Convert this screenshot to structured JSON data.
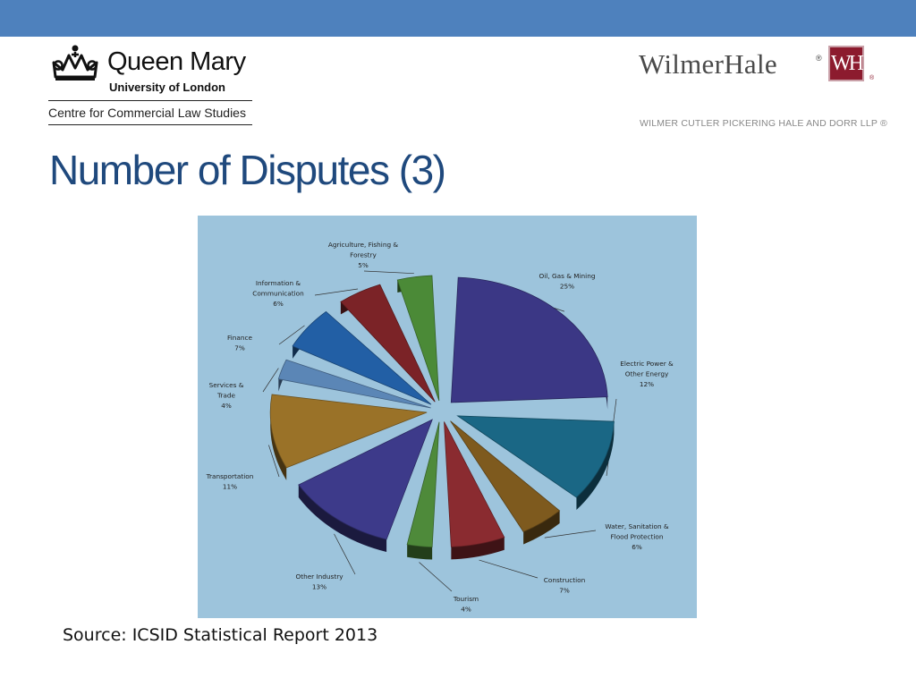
{
  "header": {
    "qm_logo": {
      "name": "Queen Mary",
      "subtitle": "University of London",
      "centre": "Centre for Commercial Law Studies"
    },
    "wh_logo": {
      "wordmark": "WilmerHale",
      "reg_mark": "®",
      "monogram": "WH",
      "firm_name": "WILMER CUTLER PICKERING HALE AND DORR LLP ®"
    }
  },
  "slide": {
    "title": "Number of Disputes (3)",
    "source": "Source: ICSID Statistical Report 2013"
  },
  "colors": {
    "top_bar": "#4e81bd",
    "title": "#1f497d",
    "chart_background": "#9dc4dc"
  },
  "chart_data": {
    "type": "pie",
    "title": "",
    "unit": "%",
    "slices": [
      {
        "label_lines": [
          "Oil, Gas & Mining"
        ],
        "value": 25,
        "value_label": "25%",
        "color": "#3b3785"
      },
      {
        "label_lines": [
          "Electric Power &",
          "Other Energy"
        ],
        "value": 12,
        "value_label": "12%",
        "color": "#1a6785"
      },
      {
        "label_lines": [
          "Water, Sanitation &",
          "Flood Protection"
        ],
        "value": 6,
        "value_label": "6%",
        "color": "#7e5a1e"
      },
      {
        "label_lines": [
          "Construction"
        ],
        "value": 7,
        "value_label": "7%",
        "color": "#8a2b30"
      },
      {
        "label_lines": [
          "Tourism"
        ],
        "value": 4,
        "value_label": "4%",
        "color": "#4e8a3a"
      },
      {
        "label_lines": [
          "Other Industry"
        ],
        "value": 13,
        "value_label": "13%",
        "color": "#3d3a8a"
      },
      {
        "label_lines": [
          "Transportation"
        ],
        "value": 11,
        "value_label": "11%",
        "color": "#9a7228"
      },
      {
        "label_lines": [
          "Services &",
          "Trade"
        ],
        "value": 4,
        "value_label": "4%",
        "color": "#5b86b6"
      },
      {
        "label_lines": [
          "Finance"
        ],
        "value": 7,
        "value_label": "7%",
        "color": "#225fa5"
      },
      {
        "label_lines": [
          "Information &",
          "Communication"
        ],
        "value": 6,
        "value_label": "6%",
        "color": "#7b2327"
      },
      {
        "label_lines": [
          "Agriculture, Fishing &",
          "Forestry"
        ],
        "value": 5,
        "value_label": "5%",
        "color": "#4b8a37"
      }
    ]
  }
}
